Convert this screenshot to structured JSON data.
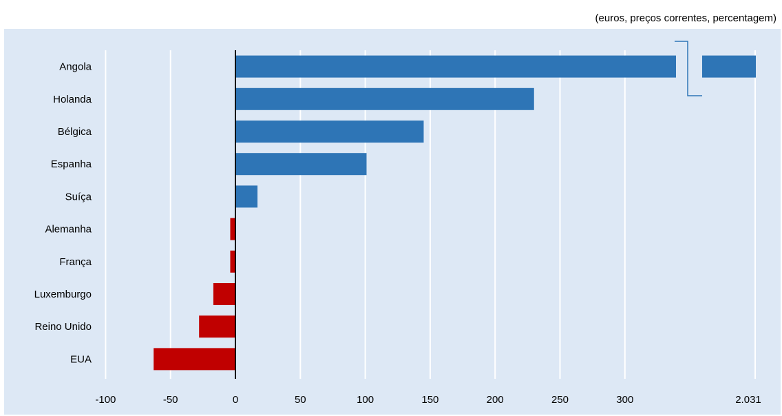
{
  "header": {
    "unit_note": "(euros, preços correntes, percentagem)"
  },
  "colors": {
    "positive": "#2e75b6",
    "negative": "#c00000",
    "background": "#dde8f5",
    "gridline": "#ffffff",
    "zero_line": "#000000"
  },
  "chart_data": {
    "type": "bar",
    "orientation": "horizontal",
    "categories": [
      "Angola",
      "Holanda",
      "Bélgica",
      "Espanha",
      "Suíça",
      "Alemanha",
      "França",
      "Luxemburgo",
      "Reino Unido",
      "EUA"
    ],
    "values": [
      2031,
      230,
      145,
      101,
      17,
      -4,
      -4,
      -17,
      -28,
      -63
    ],
    "xlim": [
      -100,
      2031
    ],
    "axis_break": {
      "after": 340,
      "resumes_at": 2031
    },
    "x_ticks": [
      "-100",
      "-50",
      "0",
      "50",
      "100",
      "150",
      "200",
      "250",
      "300",
      "2.031"
    ],
    "x_tick_values": [
      -100,
      -50,
      0,
      50,
      100,
      150,
      200,
      250,
      300,
      2031
    ],
    "grid": true
  }
}
